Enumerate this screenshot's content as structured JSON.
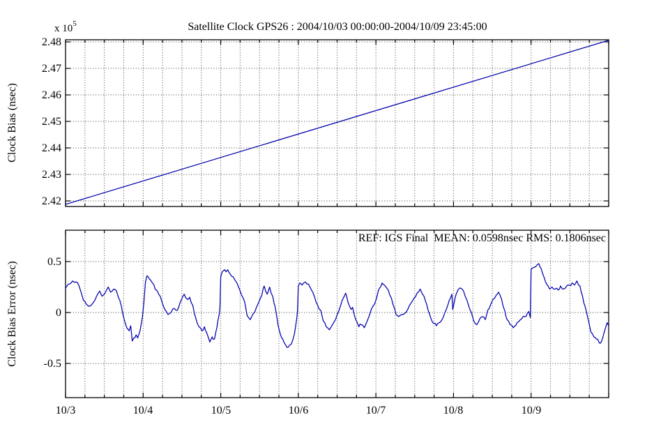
{
  "figure": {
    "title": "Satellite Clock GPS26 : 2004/10/03 00:00:00-2004/10/09 23:45:00",
    "background": "#ffffff"
  },
  "colors": {
    "line": "#0000ad",
    "axis": "#000000",
    "grid": "#3d3d3d",
    "text": "#000000"
  },
  "top_plot": {
    "ylabel": "Clock Bias (nsec)",
    "exponent_base": "x 10",
    "exponent_power": "5",
    "y_ticks": [
      "2.48",
      "2.47",
      "2.46",
      "2.45",
      "2.44",
      "2.43",
      "2.42"
    ]
  },
  "bottom_plot": {
    "ylabel": "Clock Bias Error (nsec)",
    "annotation": "REF: IGS Final  MEAN: 0.0598nsec RMS: 0.1806nsec",
    "ref": "IGS Final",
    "mean_nsec": "0.0598",
    "rms_nsec": "0.1806",
    "y_ticks": [
      "0.5",
      "0",
      "-0.5"
    ],
    "x_ticks": [
      "10/3",
      "10/4",
      "10/5",
      "10/6",
      "10/7",
      "10/8",
      "10/9"
    ]
  },
  "chart_data": [
    {
      "type": "line",
      "title": "Satellite Clock GPS26 : 2004/10/03 00:00:00-2004/10/09 23:45:00",
      "ylabel": "Clock Bias (nsec)",
      "y_unit": "x 10^5 nsec",
      "x_start": "2004/10/03 00:00:00",
      "x_end": "2004/10/09 23:45:00",
      "x_range_days": [
        0,
        7
      ],
      "ylim": [
        2.4179,
        2.4808
      ],
      "yticks": [
        2.48,
        2.47,
        2.46,
        2.45,
        2.44,
        2.43,
        2.42
      ],
      "xtick_days": [
        0,
        1,
        2,
        3,
        4,
        5,
        6,
        7
      ],
      "minor_tick_step_days": 0.25,
      "grid": true,
      "sample_step_days": 0,
      "noise_amplitude": 0,
      "points": [
        [
          0,
          2.4187
        ],
        [
          7,
          2.4806
        ]
      ]
    },
    {
      "type": "line",
      "ylabel": "Clock Bias Error (nsec)",
      "annotation": "REF: IGS Final  MEAN: 0.0598nsec RMS: 0.1806nsec",
      "xtick_labels": [
        "10/3",
        "10/4",
        "10/5",
        "10/6",
        "10/7",
        "10/8",
        "10/9"
      ],
      "xtick_days": [
        0,
        1,
        2,
        3,
        4,
        5,
        6,
        7
      ],
      "minor_tick_step_days": 0.25,
      "x_range_days": [
        0,
        7
      ],
      "ylim": [
        -0.836,
        0.808
      ],
      "yticks": [
        0.5,
        0,
        -0.5
      ],
      "grid": true,
      "sample_step_days": 0.015,
      "noise_amplitude": 0.016,
      "points": [
        [
          0.0,
          0.24
        ],
        [
          0.05,
          0.28
        ],
        [
          0.09,
          0.31
        ],
        [
          0.13,
          0.3
        ],
        [
          0.17,
          0.27
        ],
        [
          0.2,
          0.2
        ],
        [
          0.23,
          0.12
        ],
        [
          0.27,
          0.08
        ],
        [
          0.3,
          0.06
        ],
        [
          0.33,
          0.07
        ],
        [
          0.36,
          0.1
        ],
        [
          0.4,
          0.16
        ],
        [
          0.44,
          0.21
        ],
        [
          0.47,
          0.16
        ],
        [
          0.51,
          0.19
        ],
        [
          0.55,
          0.25
        ],
        [
          0.58,
          0.2
        ],
        [
          0.62,
          0.23
        ],
        [
          0.65,
          0.22
        ],
        [
          0.68,
          0.15
        ],
        [
          0.72,
          0.06
        ],
        [
          0.75,
          -0.05
        ],
        [
          0.79,
          -0.15
        ],
        [
          0.82,
          -0.18
        ],
        [
          0.84,
          -0.13
        ],
        [
          0.86,
          -0.28
        ],
        [
          0.88,
          -0.25
        ],
        [
          0.91,
          -0.22
        ],
        [
          0.93,
          -0.25
        ],
        [
          0.96,
          -0.18
        ],
        [
          0.99,
          -0.05
        ],
        [
          1.01,
          0.1
        ],
        [
          1.03,
          0.3
        ],
        [
          1.05,
          0.36
        ],
        [
          1.08,
          0.33
        ],
        [
          1.11,
          0.3
        ],
        [
          1.14,
          0.27
        ],
        [
          1.17,
          0.22
        ],
        [
          1.2,
          0.18
        ],
        [
          1.24,
          0.11
        ],
        [
          1.28,
          0.03
        ],
        [
          1.32,
          -0.02
        ],
        [
          1.36,
          0.0
        ],
        [
          1.4,
          0.04
        ],
        [
          1.44,
          0.02
        ],
        [
          1.49,
          0.12
        ],
        [
          1.53,
          0.18
        ],
        [
          1.57,
          0.13
        ],
        [
          1.6,
          0.15
        ],
        [
          1.64,
          0.07
        ],
        [
          1.68,
          -0.06
        ],
        [
          1.72,
          -0.14
        ],
        [
          1.76,
          -0.18
        ],
        [
          1.79,
          -0.14
        ],
        [
          1.82,
          -0.2
        ],
        [
          1.86,
          -0.29
        ],
        [
          1.89,
          -0.24
        ],
        [
          1.92,
          -0.26
        ],
        [
          1.95,
          -0.15
        ],
        [
          1.98,
          -0.02
        ],
        [
          1.99,
          0.05
        ],
        [
          2.0,
          0.35
        ],
        [
          2.02,
          0.4
        ],
        [
          2.05,
          0.42
        ],
        [
          2.07,
          0.4
        ],
        [
          2.09,
          0.42
        ],
        [
          2.12,
          0.38
        ],
        [
          2.16,
          0.35
        ],
        [
          2.19,
          0.31
        ],
        [
          2.23,
          0.25
        ],
        [
          2.27,
          0.17
        ],
        [
          2.31,
          0.1
        ],
        [
          2.34,
          -0.03
        ],
        [
          2.38,
          -0.07
        ],
        [
          2.42,
          -0.01
        ],
        [
          2.46,
          0.05
        ],
        [
          2.5,
          0.12
        ],
        [
          2.53,
          0.17
        ],
        [
          2.56,
          0.26
        ],
        [
          2.6,
          0.18
        ],
        [
          2.63,
          0.25
        ],
        [
          2.67,
          0.16
        ],
        [
          2.7,
          0.06
        ],
        [
          2.74,
          -0.13
        ],
        [
          2.78,
          -0.24
        ],
        [
          2.82,
          -0.3
        ],
        [
          2.87,
          -0.34
        ],
        [
          2.91,
          -0.31
        ],
        [
          2.95,
          -0.21
        ],
        [
          2.98,
          -0.06
        ],
        [
          2.99,
          0.02
        ],
        [
          3.0,
          0.26
        ],
        [
          3.02,
          0.29
        ],
        [
          3.05,
          0.27
        ],
        [
          3.09,
          0.3
        ],
        [
          3.13,
          0.28
        ],
        [
          3.17,
          0.22
        ],
        [
          3.21,
          0.15
        ],
        [
          3.25,
          0.07
        ],
        [
          3.29,
          0.02
        ],
        [
          3.32,
          -0.08
        ],
        [
          3.36,
          -0.14
        ],
        [
          3.4,
          -0.17
        ],
        [
          3.44,
          -0.12
        ],
        [
          3.48,
          -0.07
        ],
        [
          3.52,
          0.01
        ],
        [
          3.55,
          0.08
        ],
        [
          3.58,
          0.14
        ],
        [
          3.61,
          0.19
        ],
        [
          3.64,
          0.1
        ],
        [
          3.68,
          0.03
        ],
        [
          3.7,
          0.05
        ],
        [
          3.74,
          -0.07
        ],
        [
          3.78,
          -0.14
        ],
        [
          3.81,
          -0.12
        ],
        [
          3.85,
          -0.15
        ],
        [
          3.89,
          -0.08
        ],
        [
          3.92,
          -0.02
        ],
        [
          3.96,
          0.06
        ],
        [
          4.0,
          0.12
        ],
        [
          4.03,
          0.21
        ],
        [
          4.08,
          0.29
        ],
        [
          4.11,
          0.27
        ],
        [
          4.14,
          0.24
        ],
        [
          4.18,
          0.17
        ],
        [
          4.22,
          0.08
        ],
        [
          4.26,
          -0.02
        ],
        [
          4.29,
          -0.04
        ],
        [
          4.33,
          -0.02
        ],
        [
          4.37,
          -0.01
        ],
        [
          4.41,
          0.03
        ],
        [
          4.45,
          0.09
        ],
        [
          4.49,
          0.14
        ],
        [
          4.53,
          0.19
        ],
        [
          4.57,
          0.23
        ],
        [
          4.6,
          0.18
        ],
        [
          4.64,
          0.11
        ],
        [
          4.67,
          0.03
        ],
        [
          4.71,
          -0.06
        ],
        [
          4.75,
          -0.11
        ],
        [
          4.78,
          -0.13
        ],
        [
          4.82,
          -0.1
        ],
        [
          4.86,
          -0.06
        ],
        [
          4.89,
          0.0
        ],
        [
          4.93,
          0.08
        ],
        [
          4.96,
          0.14
        ],
        [
          4.98,
          0.18
        ],
        [
          4.99,
          0.03
        ],
        [
          5.01,
          0.1
        ],
        [
          5.04,
          0.19
        ],
        [
          5.08,
          0.24
        ],
        [
          5.11,
          0.23
        ],
        [
          5.15,
          0.16
        ],
        [
          5.19,
          0.08
        ],
        [
          5.23,
          0.0
        ],
        [
          5.26,
          -0.08
        ],
        [
          5.3,
          -0.12
        ],
        [
          5.34,
          -0.06
        ],
        [
          5.37,
          -0.04
        ],
        [
          5.41,
          -0.07
        ],
        [
          5.44,
          0.02
        ],
        [
          5.48,
          0.08
        ],
        [
          5.51,
          0.13
        ],
        [
          5.55,
          0.17
        ],
        [
          5.58,
          0.2
        ],
        [
          5.62,
          0.13
        ],
        [
          5.66,
          0.02
        ],
        [
          5.69,
          -0.07
        ],
        [
          5.73,
          -0.12
        ],
        [
          5.77,
          -0.15
        ],
        [
          5.8,
          -0.13
        ],
        [
          5.84,
          -0.09
        ],
        [
          5.88,
          -0.06
        ],
        [
          5.92,
          -0.04
        ],
        [
          5.95,
          -0.01
        ],
        [
          5.97,
          0.01
        ],
        [
          5.99,
          -0.05
        ],
        [
          6.0,
          0.42
        ],
        [
          6.03,
          0.44
        ],
        [
          6.06,
          0.45
        ],
        [
          6.1,
          0.48
        ],
        [
          6.13,
          0.43
        ],
        [
          6.17,
          0.34
        ],
        [
          6.2,
          0.28
        ],
        [
          6.24,
          0.23
        ],
        [
          6.27,
          0.25
        ],
        [
          6.31,
          0.23
        ],
        [
          6.35,
          0.22
        ],
        [
          6.38,
          0.26
        ],
        [
          6.42,
          0.23
        ],
        [
          6.45,
          0.25
        ],
        [
          6.49,
          0.27
        ],
        [
          6.53,
          0.29
        ],
        [
          6.56,
          0.27
        ],
        [
          6.59,
          0.31
        ],
        [
          6.63,
          0.26
        ],
        [
          6.66,
          0.17
        ],
        [
          6.7,
          0.05
        ],
        [
          6.74,
          -0.08
        ],
        [
          6.77,
          -0.19
        ],
        [
          6.81,
          -0.24
        ],
        [
          6.84,
          -0.26
        ],
        [
          6.88,
          -0.3
        ],
        [
          6.91,
          -0.28
        ],
        [
          6.93,
          -0.23
        ],
        [
          6.96,
          -0.15
        ],
        [
          6.98,
          -0.1
        ],
        [
          7.0,
          -0.13
        ]
      ]
    }
  ]
}
